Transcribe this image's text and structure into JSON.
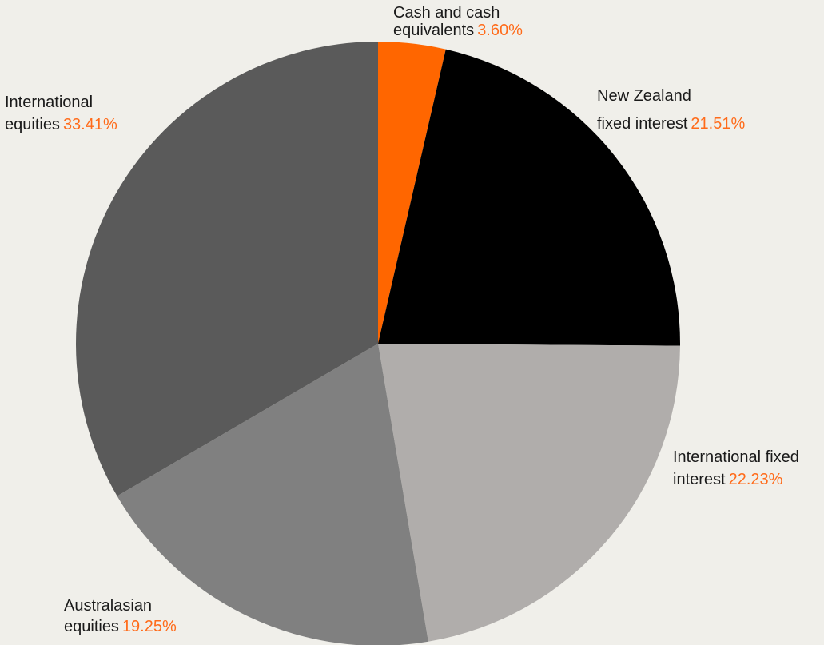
{
  "chart_data": {
    "type": "pie",
    "start_angle_deg": 0,
    "direction": "clockwise",
    "slices": [
      {
        "line1": "Cash and cash",
        "line2": "equivalents",
        "percent_label": "3.60%",
        "value": 3.6,
        "color": "#ff6600"
      },
      {
        "line1": "New Zealand",
        "line2": "fixed interest",
        "percent_label": "21.51%",
        "value": 21.51,
        "color": "#000000"
      },
      {
        "line1": "International fixed",
        "line2": "interest",
        "percent_label": "22.23%",
        "value": 22.23,
        "color": "#b0adab"
      },
      {
        "line1": "Australasian",
        "line2": "equities",
        "percent_label": "19.25%",
        "value": 19.25,
        "color": "#808080"
      },
      {
        "line1": "International",
        "line2": "equities",
        "percent_label": "33.41%",
        "value": 33.41,
        "color": "#5a5a5a"
      }
    ]
  },
  "colors": {
    "background": "#f0efea",
    "percent_text": "#ff6b1a",
    "label_text": "#1a1a1a"
  }
}
